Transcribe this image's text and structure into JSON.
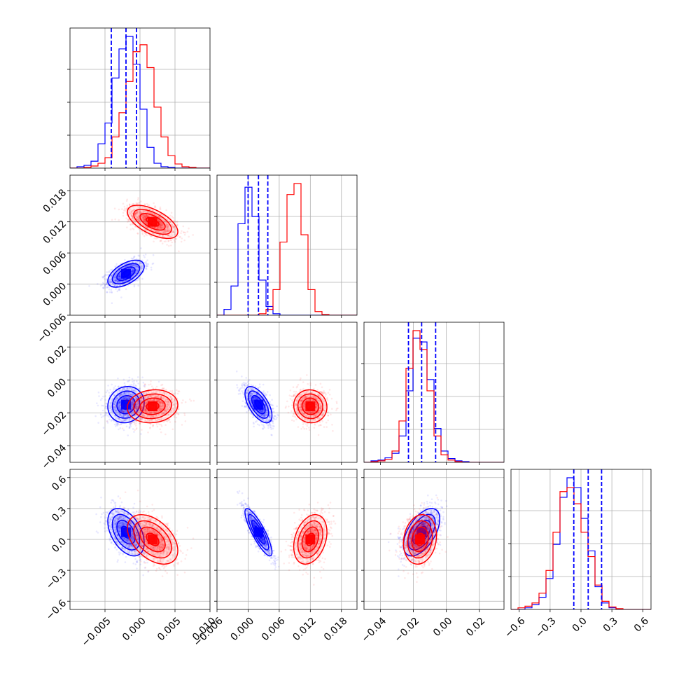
{
  "colors": {
    "blue": "#0000ff",
    "red": "#ff0000",
    "grid": "#b0b0b0",
    "axis": "#000000",
    "background": "#ffffff"
  },
  "chart_data": {
    "type": "corner",
    "title": "",
    "grid": true,
    "parameters": [
      {
        "label": "",
        "range": [
          -0.01,
          0.01
        ],
        "ticks": [
          -0.005,
          0.0,
          0.005,
          0.01
        ],
        "tick_labels": [
          "−0.005",
          "0.000",
          "0.005",
          "0.010"
        ]
      },
      {
        "label": "",
        "range": [
          -0.006,
          0.021
        ],
        "ticks": [
          -0.006,
          0.0,
          0.006,
          0.012,
          0.018
        ],
        "tick_labels": [
          "−0.006",
          "0.000",
          "0.006",
          "0.012",
          "0.018"
        ]
      },
      {
        "label": "",
        "range": [
          -0.05,
          0.035
        ],
        "ticks": [
          -0.04,
          -0.02,
          0.0,
          0.02
        ],
        "tick_labels": [
          "−0.04",
          "−0.02",
          "0.00",
          "0.02"
        ]
      },
      {
        "label": "",
        "range": [
          -0.68,
          0.68
        ],
        "ticks": [
          -0.6,
          -0.3,
          0.0,
          0.3,
          0.6
        ],
        "tick_labels": [
          "−0.6",
          "−0.3",
          "0.0",
          "0.3",
          "0.6"
        ]
      }
    ],
    "series": [
      {
        "color": "blue",
        "means": [
          -0.002,
          0.002,
          -0.015,
          0.07
        ],
        "sds": [
          0.0013,
          0.0013,
          0.0055,
          0.115
        ],
        "quantile_lines": [
          [
            -0.0041,
            -0.002,
            -0.0005
          ],
          [
            0.0,
            0.002,
            0.0038
          ],
          [
            -0.023,
            -0.015,
            -0.0065
          ],
          [
            -0.07,
            0.07,
            0.2
          ]
        ],
        "correlations": [
          [
            0,
            1,
            0.55
          ],
          [
            0,
            2,
            0.1
          ],
          [
            0,
            3,
            -0.45
          ],
          [
            1,
            2,
            -0.6
          ],
          [
            1,
            3,
            -0.85
          ],
          [
            2,
            3,
            0.55
          ]
        ],
        "histograms": [
          {
            "edges_range": [
              -0.01,
              0.01
            ],
            "counts": [
              0,
              2,
              4,
              10,
              35,
              65,
              130,
              172,
              190,
              150,
              85,
              30,
              7,
              2,
              1,
              0,
              0,
              0,
              0,
              0
            ]
          },
          {
            "edges_range": [
              -0.006,
              0.021
            ],
            "counts": [
              0,
              8,
              40,
              125,
              175,
              135,
              48,
              12,
              2,
              0,
              0,
              0,
              0,
              0,
              0,
              0,
              0,
              0,
              0,
              0
            ]
          },
          {
            "edges_range": [
              -0.05,
              0.035
            ],
            "counts": [
              0,
              2,
              3,
              6,
              12,
              35,
              95,
              165,
              160,
              110,
              45,
              15,
              5,
              2,
              1,
              0,
              0,
              0,
              0,
              0
            ]
          },
          {
            "edges_range": [
              -0.68,
              0.68
            ],
            "counts": [
              0,
              0,
              2,
              6,
              15,
              38,
              80,
              138,
              162,
              150,
              112,
              72,
              28,
              8,
              2,
              0,
              0,
              0,
              0,
              0
            ]
          }
        ]
      },
      {
        "color": "red",
        "means": [
          0.0018,
          0.012,
          -0.016,
          0.0
        ],
        "sds": [
          0.0018,
          0.0016,
          0.005,
          0.12
        ],
        "quantile_lines": null,
        "correlations": [
          [
            0,
            1,
            -0.6
          ],
          [
            0,
            2,
            0.1
          ],
          [
            0,
            3,
            -0.45
          ],
          [
            1,
            2,
            -0.05
          ],
          [
            1,
            3,
            0.3
          ],
          [
            2,
            3,
            0.15
          ]
        ],
        "histograms": [
          {
            "edges_range": [
              -0.01,
              0.01
            ],
            "counts": [
              0,
              0,
              1,
              3,
              7,
              15,
              45,
              80,
              125,
              168,
              178,
              145,
              88,
              45,
              18,
              6,
              2,
              1,
              0,
              0
            ]
          },
          {
            "edges_range": [
              -0.006,
              0.021
            ],
            "counts": [
              0,
              0,
              0,
              0,
              0,
              0,
              2,
              8,
              35,
              100,
              165,
              180,
              110,
              35,
              5,
              1,
              0,
              0,
              0,
              0
            ]
          },
          {
            "edges_range": [
              -0.05,
              0.035
            ],
            "counts": [
              0,
              1,
              2,
              4,
              15,
              55,
              125,
              175,
              150,
              95,
              35,
              10,
              3,
              1,
              0,
              0,
              0,
              0,
              0,
              0
            ]
          },
          {
            "edges_range": [
              -0.68,
              0.68
            ],
            "counts": [
              0,
              2,
              4,
              8,
              20,
              48,
              95,
              145,
              150,
              130,
              95,
              65,
              30,
              10,
              3,
              1,
              0,
              0,
              0,
              0
            ]
          }
        ]
      }
    ]
  }
}
